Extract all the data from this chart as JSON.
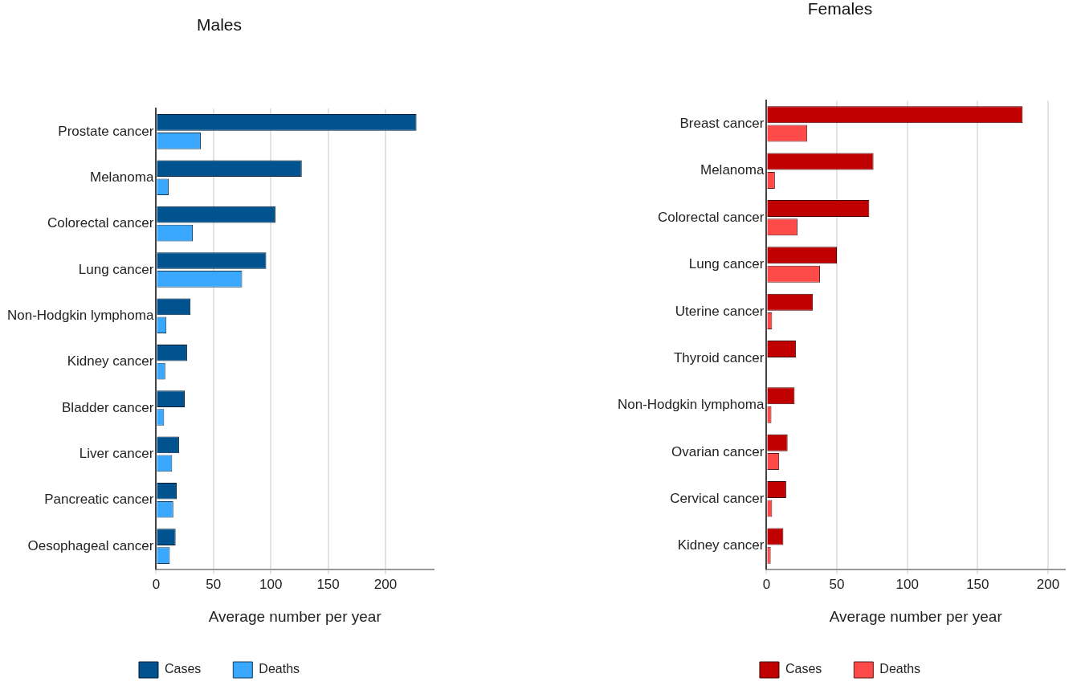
{
  "chart_data": [
    {
      "type": "bar",
      "title": "Males",
      "xlabel": "Average number per year",
      "orientation": "horizontal",
      "categories": [
        "Prostate cancer",
        "Melanoma",
        "Colorectal cancer",
        "Lung cancer",
        "Non-Hodgkin lymphoma",
        "Kidney cancer",
        "Bladder cancer",
        "Liver cancer",
        "Pancreatic cancer",
        "Oesophageal cancer"
      ],
      "series": [
        {
          "name": "Cases",
          "color": "#00538f",
          "values": [
            227,
            127,
            104,
            96,
            30,
            27,
            25,
            20,
            18,
            17
          ]
        },
        {
          "name": "Deaths",
          "color": "#3aa8ff",
          "values": [
            39,
            11,
            32,
            75,
            9,
            8,
            7,
            14,
            15,
            12
          ]
        }
      ],
      "xlim": [
        0,
        242
      ],
      "xticks": [
        0,
        50,
        100,
        150,
        200
      ],
      "grid": "x",
      "legend": "bottom"
    },
    {
      "type": "bar",
      "title": "Females",
      "xlabel": "Average number per year",
      "orientation": "horizontal",
      "categories": [
        "Breast cancer",
        "Melanoma",
        "Colorectal cancer",
        "Lung cancer",
        "Uterine cancer",
        "Thyroid cancer",
        "Non-Hodgkin lymphoma",
        "Ovarian cancer",
        "Cervical cancer",
        "Kidney cancer"
      ],
      "series": [
        {
          "name": "Cases",
          "color": "#c00000",
          "values": [
            182,
            76,
            73,
            50,
            33,
            21,
            20,
            15,
            14,
            12
          ]
        },
        {
          "name": "Deaths",
          "color": "#ff4a4a",
          "values": [
            29,
            6,
            22,
            38,
            4,
            null,
            3.5,
            9,
            4,
            3
          ]
        }
      ],
      "xlim": [
        0,
        212
      ],
      "xticks": [
        0,
        50,
        100,
        150,
        200
      ],
      "grid": "x",
      "legend": "bottom"
    }
  ]
}
